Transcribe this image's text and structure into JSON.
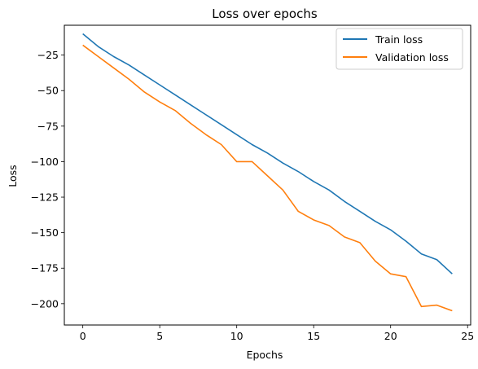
{
  "chart_data": {
    "type": "line",
    "title": "Loss over epochs",
    "xlabel": "Epochs",
    "ylabel": "Loss",
    "xlim": [
      -1.2,
      25.2
    ],
    "ylim": [
      -215,
      -4
    ],
    "xticks": [
      0,
      5,
      10,
      15,
      20,
      25
    ],
    "yticks": [
      -25,
      -50,
      -75,
      -100,
      -125,
      -150,
      -175,
      -200
    ],
    "tick_labels": {
      "x": [
        "0",
        "5",
        "10",
        "15",
        "20",
        "25"
      ],
      "y": [
        "−25",
        "−50",
        "−75",
        "−100",
        "−125",
        "−150",
        "−175",
        "−200"
      ]
    },
    "grid": false,
    "legend_position": "top-right",
    "x": [
      0,
      1,
      2,
      3,
      4,
      5,
      6,
      7,
      8,
      9,
      10,
      11,
      12,
      13,
      14,
      15,
      16,
      17,
      18,
      19,
      20,
      21,
      22,
      23,
      24
    ],
    "series": [
      {
        "name": "Train loss",
        "color": "#1f77b4",
        "values": [
          -10,
          -19,
          -26,
          -32,
          -39,
          -46,
          -53,
          -60,
          -67,
          -74,
          -81,
          -88,
          -94,
          -101,
          -107,
          -114,
          -120,
          -128,
          -135,
          -142,
          -148,
          -156,
          -165,
          -169,
          -179
        ]
      },
      {
        "name": "Validation loss",
        "color": "#ff7f0e",
        "values": [
          -18,
          -26,
          -34,
          -42,
          -51,
          -58,
          -64,
          -73,
          -81,
          -88,
          -100,
          -100,
          -110,
          -120,
          -135,
          -141,
          -145,
          -153,
          -157,
          -170,
          -179,
          -181,
          -202,
          -201,
          -205
        ]
      }
    ]
  }
}
